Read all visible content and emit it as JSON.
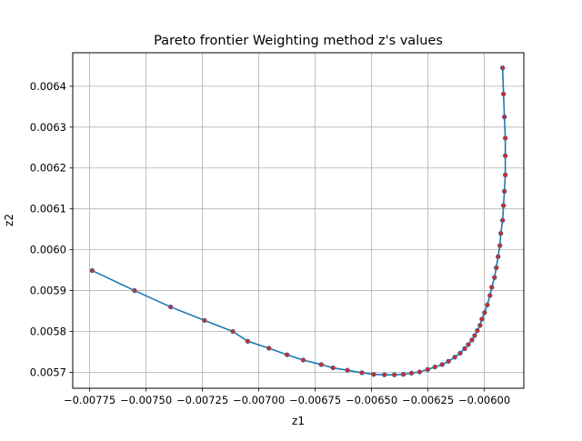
{
  "chart_data": {
    "type": "line",
    "title": "Pareto frontier Weighting method z's values",
    "xlabel": "z1",
    "ylabel": "z2",
    "xlim": [
      -0.007825,
      -0.005825
    ],
    "ylim": [
      0.005661,
      0.006482
    ],
    "grid": true,
    "x_ticks": [
      "−0.00775",
      "−0.00750",
      "−0.00725",
      "−0.00700",
      "−0.00675",
      "−0.00650",
      "−0.00625",
      "−0.00600"
    ],
    "x_tick_values": [
      -0.00775,
      -0.0075,
      -0.00725,
      -0.007,
      -0.00675,
      -0.0065,
      -0.00625,
      -0.006
    ],
    "y_ticks": [
      "0.0057",
      "0.0058",
      "0.0059",
      "0.0060",
      "0.0061",
      "0.0062",
      "0.0063",
      "0.0064"
    ],
    "y_tick_values": [
      0.0057,
      0.0058,
      0.0059,
      0.006,
      0.0061,
      0.0062,
      0.0063,
      0.0064
    ],
    "line_color": "#1f77b4",
    "marker_color": "#d62728",
    "series": [
      {
        "x": [
          -0.007739,
          -0.007551,
          -0.007391,
          -0.007241,
          -0.007115,
          -0.007049,
          -0.006955,
          -0.006875,
          -0.006803,
          -0.006723,
          -0.006671,
          -0.006607,
          -0.006543,
          -0.006491,
          -0.006443,
          -0.006399,
          -0.006359,
          -0.006323,
          -0.006287,
          -0.006251,
          -0.006219,
          -0.006187,
          -0.006159,
          -0.006131,
          -0.006107,
          -0.006087,
          -0.006071,
          -0.006055,
          -0.006043,
          -0.006031,
          -0.006019,
          -0.006011,
          -0.005999,
          -0.005987,
          -0.005975,
          -0.005967,
          -0.005955,
          -0.005947,
          -0.005939,
          -0.005931,
          -0.005927,
          -0.005919,
          -0.005915,
          -0.005911,
          -0.005907,
          -0.005907,
          -0.005907,
          -0.005911,
          -0.005915,
          -0.005919
        ],
        "y": [
          0.005949,
          0.0059,
          0.00586,
          0.005827,
          0.0058,
          0.005776,
          0.005759,
          0.005743,
          0.00573,
          0.005719,
          0.005711,
          0.005705,
          0.005699,
          0.005695,
          0.005694,
          0.005694,
          0.005695,
          0.005698,
          0.005701,
          0.005707,
          0.005713,
          0.005719,
          0.005727,
          0.005737,
          0.005747,
          0.005758,
          0.005768,
          0.005779,
          0.00579,
          0.005802,
          0.005815,
          0.00583,
          0.005846,
          0.005865,
          0.005888,
          0.005908,
          0.005932,
          0.005956,
          0.005983,
          0.00601,
          0.00604,
          0.006072,
          0.006108,
          0.006143,
          0.006183,
          0.00623,
          0.006273,
          0.006325,
          0.006381,
          0.006445
        ]
      }
    ]
  }
}
